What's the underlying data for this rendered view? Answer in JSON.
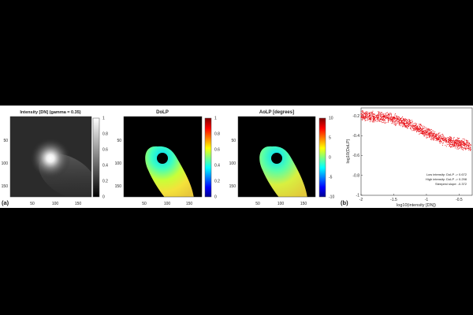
{
  "chart_data": [
    {
      "panel_label": "(a)",
      "type": "heatmap",
      "title": "Intensity [DN] (gamma = 0.35)",
      "colormap": "gray",
      "xticks": [
        "50",
        "100",
        "150"
      ],
      "yticks": [
        "50",
        "100",
        "150"
      ],
      "colorbar_ticks": [
        "1",
        "0.8",
        "0.6",
        "0.4",
        "0.2",
        "0"
      ],
      "colorbar_range": [
        0,
        1
      ]
    },
    {
      "type": "heatmap",
      "title": "DoLP",
      "colormap": "jet",
      "xticks": [
        "50",
        "100",
        "150"
      ],
      "yticks": [
        "50",
        "100",
        "150"
      ],
      "colorbar_ticks": [
        "1",
        "0.8",
        "0.6",
        "0.4",
        "0.2",
        "0"
      ],
      "colorbar_range": [
        0,
        1
      ]
    },
    {
      "type": "heatmap",
      "title": "AoLP [degrees]",
      "colormap": "jet",
      "xticks": [
        "50",
        "100",
        "150"
      ],
      "yticks": [
        "50",
        "100",
        "150"
      ],
      "colorbar_ticks": [
        "10",
        "5",
        "0",
        "-5",
        "-10"
      ],
      "colorbar_range": [
        -10,
        10
      ]
    },
    {
      "panel_label": "(b)",
      "type": "scatter",
      "xlabel": "log10(intensity [DN])",
      "ylabel": "log10(DoLP)",
      "xlim": [
        -2,
        -0.3
      ],
      "ylim": [
        -1,
        -0.12
      ],
      "xticks": [
        "-2",
        "-1.5",
        "-1",
        "-0.5"
      ],
      "yticks": [
        "-0.2",
        "-0.4",
        "-0.6",
        "-0.8",
        "-1"
      ],
      "point_color": "#e8141a",
      "band_x": [
        -2.0,
        -1.8,
        -1.6,
        -1.4,
        -1.2,
        -1.0,
        -0.8,
        -0.6,
        -0.4,
        -0.32
      ],
      "band_upper": [
        -0.14,
        -0.15,
        -0.16,
        -0.19,
        -0.24,
        -0.31,
        -0.37,
        -0.41,
        -0.43,
        -0.44
      ],
      "band_lower": [
        -0.26,
        -0.27,
        -0.28,
        -0.31,
        -0.36,
        -0.43,
        -0.49,
        -0.53,
        -0.55,
        -0.56
      ],
      "annotations": [
        "Low intensity: DoLP -> 0.672",
        "High intensity: DoLP -> 0.298",
        "Steepest slope: -0.372"
      ]
    }
  ]
}
